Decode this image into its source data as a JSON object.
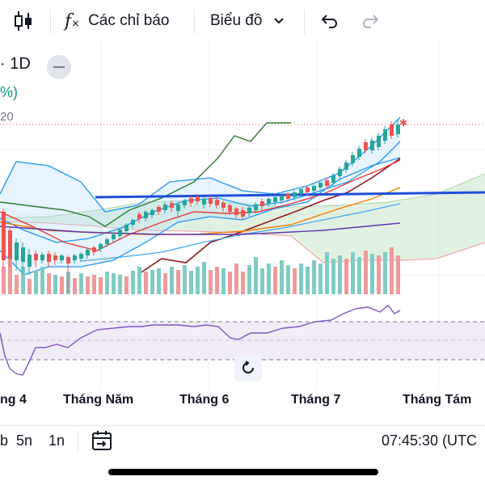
{
  "toolbar": {
    "indicators_label": "Các chỉ báo",
    "chart_type_label": "Biểu đồ"
  },
  "header": {
    "timeframe": "· 1D",
    "change_pct_fragment": "%)",
    "value_fragment": "20"
  },
  "x_axis": {
    "labels": [
      "ng 4",
      "Tháng Năm",
      "Tháng 6",
      "Tháng 7",
      "Tháng Tám"
    ]
  },
  "bottom_bar": {
    "range_partial": "b",
    "range_5d": "5n",
    "range_1d": "1n",
    "clock": "07:45:30 (UTC"
  },
  "colors": {
    "up": "#26a69a",
    "down": "#ef5350",
    "bb": "#2196f3",
    "trend_line": "#1e4fd8",
    "rsi": "#7e57c2",
    "cloud_fill": "#c8e6c9",
    "green_line": "#2e7d32",
    "dark_red": "#8b1a1a",
    "orange": "#f57c00"
  }
}
